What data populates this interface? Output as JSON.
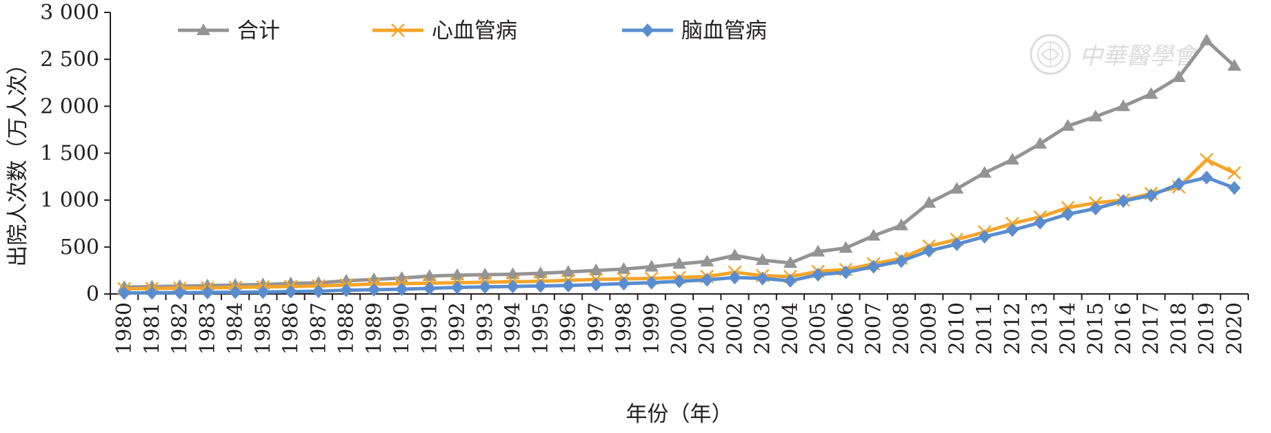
{
  "chart_data": {
    "type": "line",
    "ylabel": "出院人次数（万人次）",
    "xlabel": "年份（年）",
    "ylim": [
      0,
      3000
    ],
    "yticks": [
      0,
      500,
      1000,
      1500,
      2000,
      2500,
      3000
    ],
    "ytick_labels": [
      "0",
      "500",
      "1 000",
      "1 500",
      "2 000",
      "2 500",
      "3 000"
    ],
    "x": [
      "1980",
      "1981",
      "1982",
      "1983",
      "1984",
      "1985",
      "1986",
      "1987",
      "1988",
      "1989",
      "1990",
      "1991",
      "1992",
      "1993",
      "1994",
      "1995",
      "1996",
      "1997",
      "1998",
      "1999",
      "2000",
      "2001",
      "2002",
      "2003",
      "2004",
      "2005",
      "2006",
      "2007",
      "2008",
      "2009",
      "2010",
      "2011",
      "2012",
      "2013",
      "2014",
      "2015",
      "2016",
      "2017",
      "2018",
      "2019",
      "2020"
    ],
    "grid": false,
    "legend_position": "top-left",
    "series": [
      {
        "name": "合计",
        "color": "#949494",
        "marker": "triangle",
        "values": [
          72,
          78,
          83,
          89,
          95,
          100,
          112,
          118,
          140,
          155,
          170,
          190,
          200,
          205,
          210,
          220,
          235,
          250,
          265,
          290,
          320,
          345,
          410,
          360,
          330,
          450,
          490,
          620,
          730,
          970,
          1120,
          1290,
          1430,
          1600,
          1790,
          1890,
          2000,
          2130,
          2310,
          2700,
          2430
        ]
      },
      {
        "name": "心血管病",
        "color": "#f4a52a",
        "marker": "x",
        "values": [
          55,
          58,
          62,
          65,
          70,
          75,
          80,
          85,
          95,
          105,
          110,
          115,
          120,
          125,
          130,
          135,
          145,
          155,
          160,
          165,
          175,
          185,
          230,
          195,
          185,
          240,
          260,
          320,
          380,
          510,
          580,
          660,
          750,
          820,
          920,
          970,
          1000,
          1070,
          1140,
          1430,
          1290
        ]
      },
      {
        "name": "脑血管病",
        "color": "#5a8dd0",
        "marker": "diamond",
        "values": [
          10,
          12,
          14,
          16,
          18,
          20,
          25,
          28,
          40,
          45,
          50,
          60,
          70,
          75,
          80,
          85,
          90,
          100,
          110,
          120,
          135,
          150,
          175,
          165,
          140,
          205,
          230,
          290,
          350,
          460,
          530,
          610,
          680,
          760,
          850,
          910,
          990,
          1050,
          1170,
          1240,
          1130
        ]
      }
    ]
  },
  "watermark": {
    "text": "中華醫學會",
    "kind": "logo-seal"
  }
}
